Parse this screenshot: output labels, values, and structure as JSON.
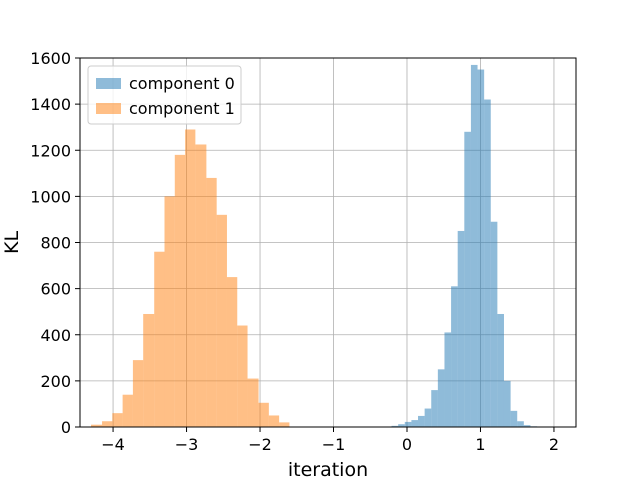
{
  "chart_data": {
    "type": "bar",
    "xlabel": "iteration",
    "ylabel": "KL",
    "xlim": [
      -4.45,
      2.3
    ],
    "ylim": [
      0,
      1600
    ],
    "x_ticks": [
      "−4",
      "−3",
      "−2",
      "−1",
      "0",
      "1",
      "2"
    ],
    "x_tick_values": [
      -4,
      -3,
      -2,
      -1,
      0,
      1,
      2
    ],
    "y_ticks": [
      "0",
      "200",
      "400",
      "600",
      "800",
      "1000",
      "1200",
      "1400",
      "1600"
    ],
    "y_tick_values": [
      0,
      200,
      400,
      600,
      800,
      1000,
      1200,
      1400,
      1600
    ],
    "grid": true,
    "legend_position": "top-left",
    "series": [
      {
        "name": "component 0",
        "color": "#1f77b4",
        "alpha": 0.5,
        "bin_edges": [
          -0.3,
          -0.21,
          -0.12,
          -0.03,
          0.06,
          0.15,
          0.24,
          0.33,
          0.42,
          0.51,
          0.6,
          0.69,
          0.78,
          0.87,
          0.96,
          1.05,
          1.14,
          1.23,
          1.32,
          1.41,
          1.5,
          1.59,
          1.68,
          1.77,
          1.86,
          1.95,
          2.04
        ],
        "counts": [
          2,
          5,
          12,
          22,
          30,
          48,
          80,
          160,
          250,
          410,
          610,
          850,
          1280,
          1570,
          1550,
          1420,
          890,
          490,
          200,
          70,
          25,
          8,
          3,
          1,
          0,
          0
        ]
      },
      {
        "name": "component 1",
        "color": "#ff7f0e",
        "alpha": 0.5,
        "bin_edges": [
          -4.3,
          -4.15,
          -4.01,
          -3.87,
          -3.73,
          -3.59,
          -3.44,
          -3.3,
          -3.16,
          -3.02,
          -2.88,
          -2.73,
          -2.59,
          -2.45,
          -2.31,
          -2.17,
          -2.02,
          -1.88,
          -1.74,
          -1.6
        ],
        "counts": [
          10,
          25,
          60,
          140,
          290,
          490,
          760,
          1000,
          1180,
          1290,
          1225,
          1080,
          920,
          650,
          440,
          210,
          105,
          50,
          20
        ]
      }
    ]
  }
}
